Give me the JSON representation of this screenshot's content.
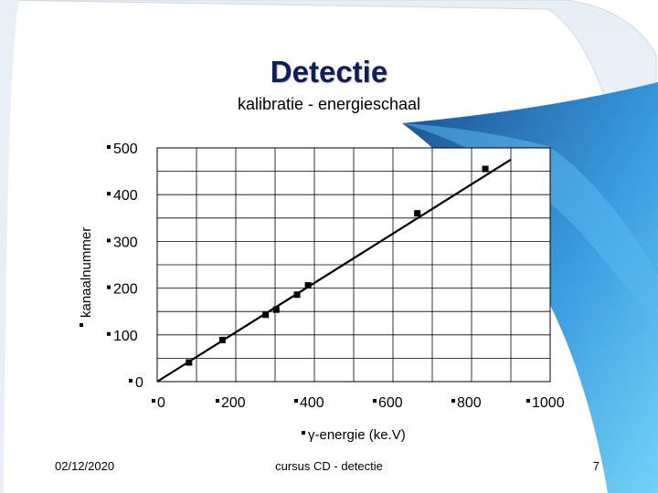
{
  "slide": {
    "title": "Detectie",
    "subtitle": "kalibratie - energieschaal",
    "footer_date": "02/12/2020",
    "footer_center": "cursus CD - detectie",
    "page_number": "7"
  },
  "colors": {
    "title": "#0f1e5a",
    "accent_light": "#66ccf5",
    "accent_dark": "#1a5c9e",
    "grid": "#000000",
    "line": "#000000"
  },
  "chart_data": {
    "type": "scatter",
    "title": "",
    "xlabel": "γ-energie (ke.V)",
    "ylabel": "kanaalnummer",
    "xlim": [
      0,
      1000
    ],
    "ylim": [
      0,
      500
    ],
    "x_ticks": [
      "0",
      "200",
      "400",
      "600",
      "800",
      "1000"
    ],
    "y_ticks": [
      "0",
      "100",
      "200",
      "300",
      "400",
      "500"
    ],
    "grid": true,
    "series": [
      {
        "points": [
          {
            "x": 81,
            "y": 41
          },
          {
            "x": 166,
            "y": 89
          },
          {
            "x": 276,
            "y": 143
          },
          {
            "x": 303,
            "y": 154
          },
          {
            "x": 356,
            "y": 186
          },
          {
            "x": 384,
            "y": 206
          },
          {
            "x": 662,
            "y": 360
          },
          {
            "x": 835,
            "y": 455
          }
        ]
      }
    ],
    "fit_line": {
      "x": [
        0,
        900
      ],
      "y": [
        0,
        475
      ]
    }
  }
}
